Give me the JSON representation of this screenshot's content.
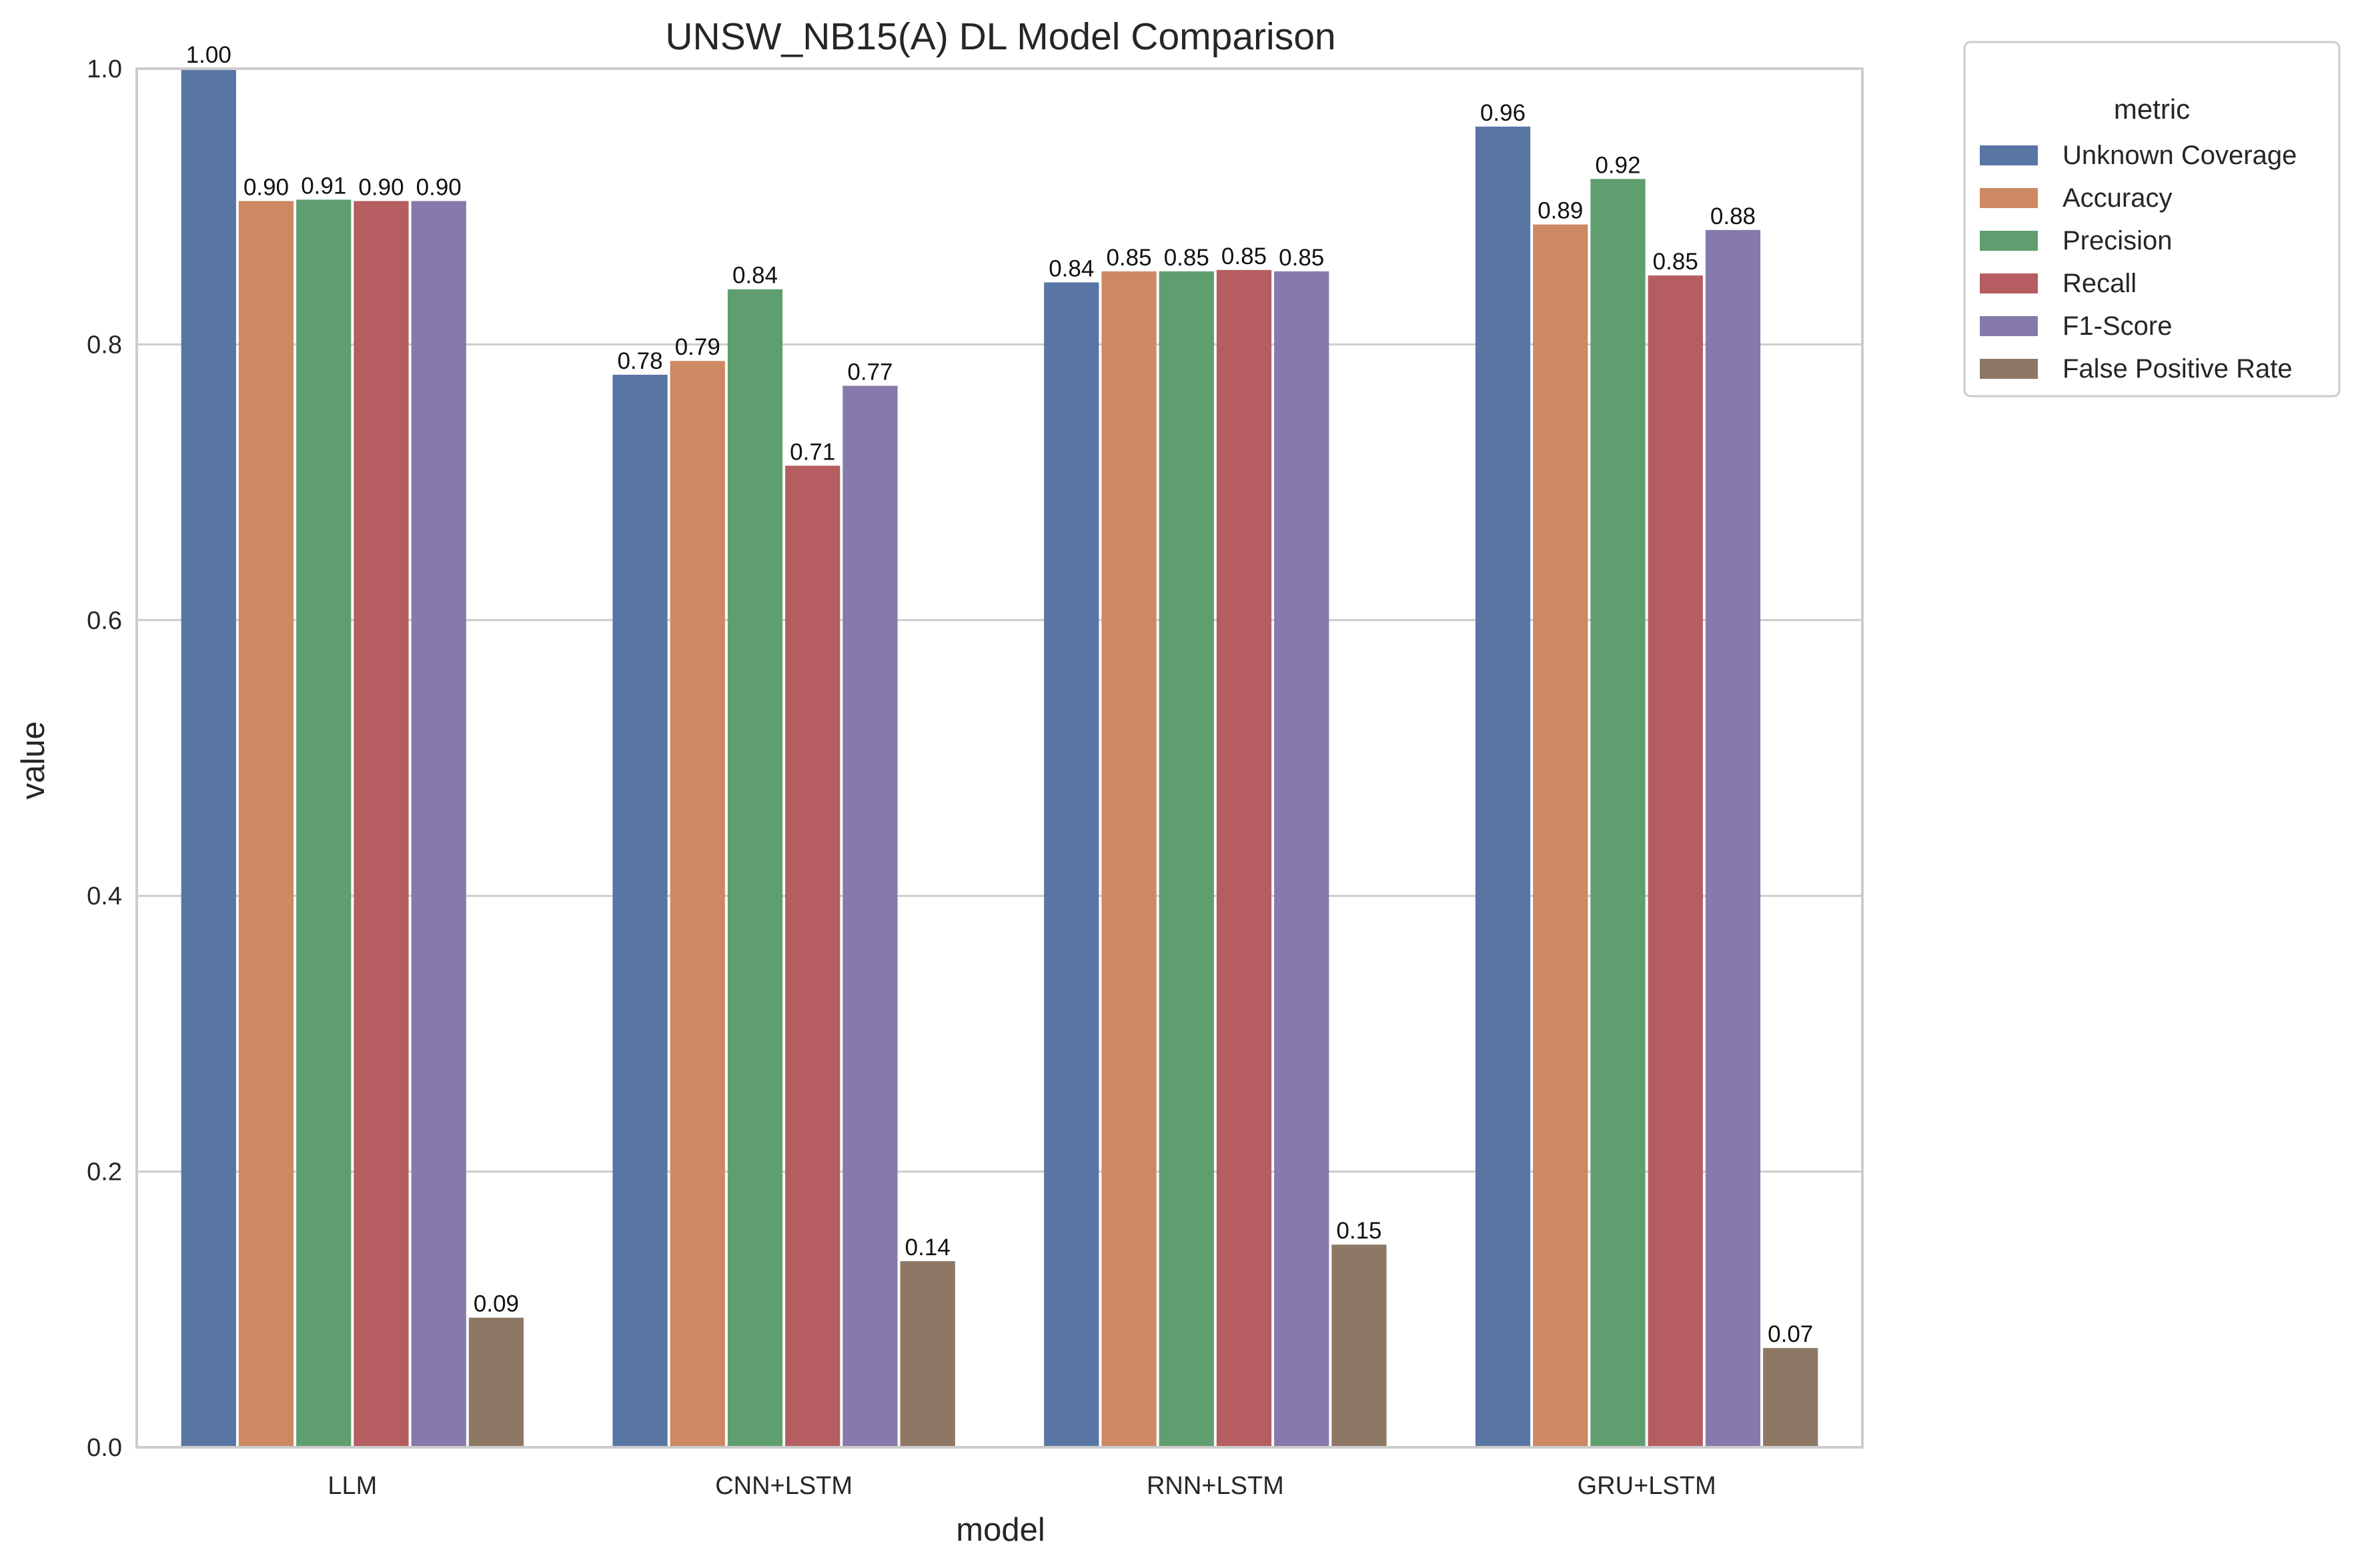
{
  "chart_data": {
    "type": "bar",
    "title": "UNSW_NB15(A) DL Model Comparison",
    "xlabel": "model",
    "ylabel": "value",
    "ylim": [
      0,
      1.0
    ],
    "yticks": [
      "0.0",
      "0.2",
      "0.4",
      "0.6",
      "0.8",
      "1.0"
    ],
    "grid": true,
    "legend": {
      "title": "metric",
      "placement": "outside-top-right"
    },
    "categories": [
      "LLM",
      "CNN+LSTM",
      "RNN+LSTM",
      "GRU+LSTM"
    ],
    "series": [
      {
        "name": "Unknown Coverage",
        "color": "#5875a4",
        "values": [
          1.0,
          0.778,
          0.845,
          0.958
        ],
        "labels": [
          "1.00",
          "0.78",
          "0.84",
          "0.96"
        ]
      },
      {
        "name": "Accuracy",
        "color": "#cc8963",
        "values": [
          0.904,
          0.788,
          0.853,
          0.887
        ],
        "labels": [
          "0.90",
          "0.79",
          "0.85",
          "0.89"
        ]
      },
      {
        "name": "Precision",
        "color": "#5f9e6e",
        "values": [
          0.905,
          0.84,
          0.853,
          0.92
        ],
        "labels": [
          "0.91",
          "0.84",
          "0.85",
          "0.92"
        ]
      },
      {
        "name": "Recall",
        "color": "#b55d60",
        "values": [
          0.904,
          0.712,
          0.854,
          0.85
        ],
        "labels": [
          "0.90",
          "0.71",
          "0.85",
          "0.85"
        ]
      },
      {
        "name": "F1-Score",
        "color": "#857aab",
        "values": [
          0.904,
          0.77,
          0.853,
          0.883
        ],
        "labels": [
          "0.90",
          "0.77",
          "0.85",
          "0.88"
        ]
      },
      {
        "name": "False Positive Rate",
        "color": "#8d7866",
        "values": [
          0.094,
          0.135,
          0.147,
          0.072
        ],
        "labels": [
          "0.09",
          "0.14",
          "0.15",
          "0.07"
        ]
      }
    ]
  }
}
